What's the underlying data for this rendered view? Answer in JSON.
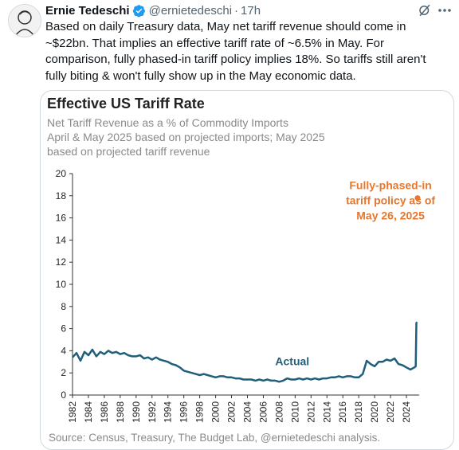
{
  "tweet": {
    "author_name": "Ernie Tedeschi",
    "handle": "@ernietedeschi",
    "separator": "·",
    "time": "17h",
    "text_lines": [
      "Based on daily Treasury data, May net tariff revenue should come in",
      "~$22bn. That implies an effective tariff rate of ~6.5% in May. For",
      "comparison, fully phased-in tariff policy implies 18%. So tariffs still aren't",
      "fully biting & won't fully show up in the May economic data."
    ],
    "icons": {
      "verified": "verified-badge-icon",
      "grok": "grok-icon",
      "more": "more-options-icon"
    },
    "accent_color": "#1d9bf0"
  },
  "chart_data": {
    "type": "line",
    "title": "Effective US Tariff Rate",
    "subtitle_lines": [
      "Net Tariff Revenue as a % of Commodity Imports",
      "April & May 2025 based on projected imports; May 2025",
      "based on projected tariff revenue"
    ],
    "ylim": [
      0,
      20
    ],
    "yticks": [
      "0",
      "2",
      "4",
      "6",
      "8",
      "10",
      "12",
      "14",
      "16",
      "18",
      "20"
    ],
    "xlim": [
      1982,
      2025.6
    ],
    "xticks": [
      "1982",
      "1984",
      "1986",
      "1988",
      "1990",
      "1992",
      "1994",
      "1996",
      "1998",
      "2000",
      "2002",
      "2004",
      "2006",
      "2008",
      "2010",
      "2012",
      "2014",
      "2016",
      "2018",
      "2020",
      "2022",
      "2024"
    ],
    "grid": false,
    "series": [
      {
        "name": "Actual",
        "color": "#1f5f7a",
        "x": [
          1982.0,
          1982.5,
          1983.0,
          1983.5,
          1984.0,
          1984.5,
          1985.0,
          1985.5,
          1986.0,
          1986.5,
          1987.0,
          1987.5,
          1988.0,
          1988.5,
          1989.0,
          1989.5,
          1990.0,
          1990.5,
          1991.0,
          1991.5,
          1992.0,
          1992.5,
          1993.0,
          1993.5,
          1994.0,
          1994.5,
          1995.0,
          1995.5,
          1996.0,
          1996.5,
          1997.0,
          1997.5,
          1998.0,
          1998.5,
          1999.0,
          1999.5,
          2000.0,
          2000.5,
          2001.0,
          2001.5,
          2002.0,
          2002.5,
          2003.0,
          2003.5,
          2004.0,
          2004.5,
          2005.0,
          2005.5,
          2006.0,
          2006.5,
          2007.0,
          2007.5,
          2008.0,
          2008.5,
          2009.0,
          2009.5,
          2010.0,
          2010.5,
          2011.0,
          2011.5,
          2012.0,
          2012.5,
          2013.0,
          2013.5,
          2014.0,
          2014.5,
          2015.0,
          2015.5,
          2016.0,
          2016.5,
          2017.0,
          2017.5,
          2018.0,
          2018.5,
          2019.0,
          2019.5,
          2020.0,
          2020.5,
          2021.0,
          2021.5,
          2022.0,
          2022.5,
          2023.0,
          2023.5,
          2024.0,
          2024.5,
          2025.0,
          2025.17,
          2025.25,
          2025.33
        ],
        "values": [
          3.4,
          3.8,
          3.1,
          3.9,
          3.6,
          4.1,
          3.5,
          3.9,
          3.7,
          4.0,
          3.8,
          3.9,
          3.7,
          3.8,
          3.6,
          3.5,
          3.5,
          3.6,
          3.3,
          3.4,
          3.2,
          3.4,
          3.2,
          3.1,
          3.0,
          2.8,
          2.7,
          2.5,
          2.2,
          2.1,
          2.0,
          1.9,
          1.8,
          1.9,
          1.8,
          1.7,
          1.6,
          1.7,
          1.7,
          1.6,
          1.6,
          1.5,
          1.5,
          1.4,
          1.4,
          1.4,
          1.3,
          1.4,
          1.3,
          1.4,
          1.3,
          1.3,
          1.2,
          1.3,
          1.5,
          1.4,
          1.4,
          1.5,
          1.4,
          1.5,
          1.4,
          1.5,
          1.4,
          1.5,
          1.5,
          1.6,
          1.6,
          1.7,
          1.6,
          1.7,
          1.7,
          1.6,
          1.6,
          1.9,
          3.1,
          2.8,
          2.6,
          3.0,
          3.0,
          3.2,
          3.1,
          3.3,
          2.8,
          2.7,
          2.5,
          2.3,
          2.5,
          2.6,
          6.5,
          6.6
        ]
      },
      {
        "name": "Fully-phased-in tariff policy as of May 26, 2025",
        "color": "#e8772e",
        "x": [
          2025.4
        ],
        "values": [
          17.8
        ]
      }
    ],
    "annotations": {
      "actual_label": "Actual",
      "policy_label_lines": [
        "Fully-phased-in",
        "tariff policy as of",
        "May 26, 2025"
      ]
    },
    "source": "Source: Census, Treasury, The Budget Lab, @ernietedeschi analysis."
  }
}
